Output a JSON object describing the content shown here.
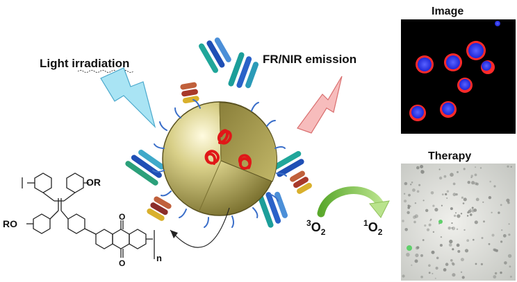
{
  "labels": {
    "light_irradiation_a": "Light ",
    "light_irradiation_b": "irradiation",
    "emission": "FR/NIR emission",
    "image_panel_title": "Image",
    "therapy_panel_title": "Therapy",
    "oxygen_triplet_sup": "3",
    "oxygen_triplet_base": "O",
    "oxygen_triplet_sub": "2",
    "oxygen_singlet_sup": "1",
    "oxygen_singlet_base": "O",
    "oxygen_singlet_sub": "2"
  },
  "structure": {
    "substituent_top": "OR",
    "substituent_left": "RO",
    "carbonyl_top": "O",
    "carbonyl_bottom": "O",
    "repeat_unit": "n"
  },
  "colors": {
    "light_bolt": "#9fe0f2",
    "emission_bolt": "#f7b6b6",
    "nanoparticle": "#b8ad5c",
    "aggregate": "#e02020",
    "arrow_green": "#7cc44a",
    "cell_nucleus": "#2f3cff",
    "cell_membrane": "#ff2a2a"
  }
}
